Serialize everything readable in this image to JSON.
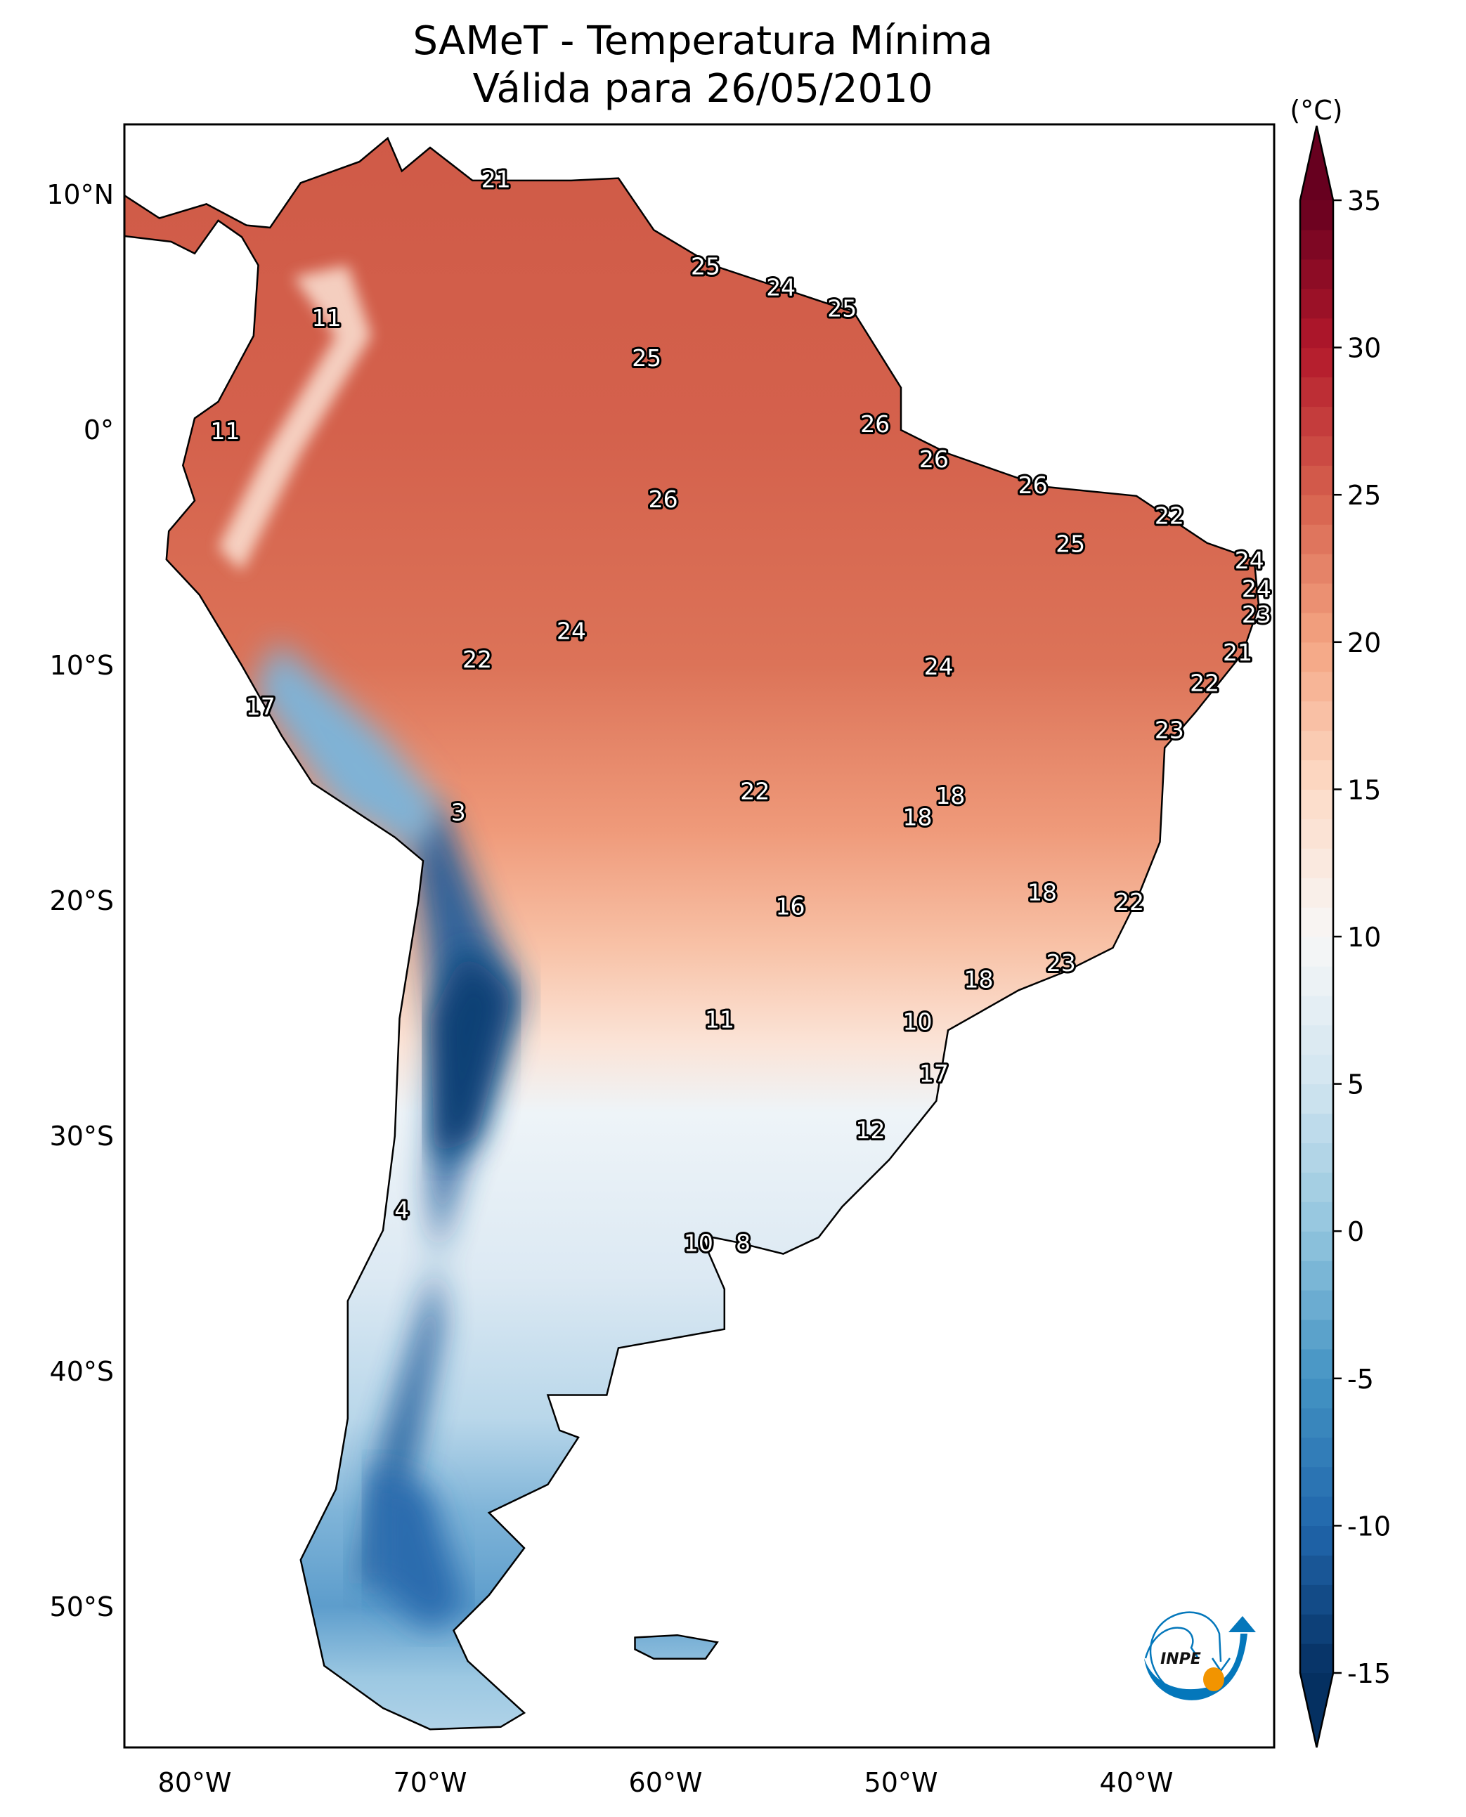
{
  "title": {
    "line1": "SAMeT - Temperatura Mínima",
    "line2": "Válida para 26/05/2010"
  },
  "colorbar": {
    "unit": "(°C)",
    "ticks": [
      "35",
      "30",
      "25",
      "20",
      "15",
      "10",
      "5",
      "0",
      "-5",
      "-10",
      "-15"
    ],
    "range": [
      -15,
      35
    ],
    "extend": "both",
    "colormap": "RdBu_r",
    "colors": [
      "#053061",
      "#2166ac",
      "#4393c3",
      "#92c5de",
      "#d1e5f0",
      "#f7f7f7",
      "#fddbc7",
      "#f4a582",
      "#d6604d",
      "#b2182b",
      "#67001f"
    ]
  },
  "axes": {
    "lat_labels": [
      "10°N",
      "0°",
      "10°S",
      "20°S",
      "30°S",
      "40°S",
      "50°S"
    ],
    "lon_labels": [
      "80°W",
      "70°W",
      "60°W",
      "50°W",
      "40°W"
    ]
  },
  "logo": {
    "text": "INPE",
    "colors": {
      "blue": "#0477bb",
      "orange": "#f29400"
    }
  },
  "chart_data": {
    "type": "map",
    "variable": "Temperatura Mínima",
    "extent": {
      "lon": [
        -83,
        -34
      ],
      "lat": [
        -56,
        13
      ]
    },
    "stations": [
      {
        "value": "21",
        "lon": -67.2,
        "lat": 10.6
      },
      {
        "value": "25",
        "lon": -58.3,
        "lat": 6.9
      },
      {
        "value": "24",
        "lon": -55.1,
        "lat": 6.0
      },
      {
        "value": "25",
        "lon": -52.5,
        "lat": 5.1
      },
      {
        "value": "11",
        "lon": -74.4,
        "lat": 4.7
      },
      {
        "value": "25",
        "lon": -60.8,
        "lat": 3.0
      },
      {
        "value": "11",
        "lon": -78.7,
        "lat": -0.1
      },
      {
        "value": "26",
        "lon": -51.1,
        "lat": 0.2
      },
      {
        "value": "26",
        "lon": -48.6,
        "lat": -1.3
      },
      {
        "value": "26",
        "lon": -60.1,
        "lat": -3.0
      },
      {
        "value": "26",
        "lon": -44.4,
        "lat": -2.4
      },
      {
        "value": "22",
        "lon": -38.6,
        "lat": -3.7
      },
      {
        "value": "25",
        "lon": -42.8,
        "lat": -4.9
      },
      {
        "value": "24",
        "lon": -35.2,
        "lat": -5.6
      },
      {
        "value": "24",
        "lon": -34.9,
        "lat": -6.8
      },
      {
        "value": "23",
        "lon": -34.9,
        "lat": -7.9
      },
      {
        "value": "24",
        "lon": -64.0,
        "lat": -8.6
      },
      {
        "value": "21",
        "lon": -35.7,
        "lat": -9.5
      },
      {
        "value": "22",
        "lon": -68.0,
        "lat": -9.8
      },
      {
        "value": "24",
        "lon": -48.4,
        "lat": -10.1
      },
      {
        "value": "22",
        "lon": -37.1,
        "lat": -10.8
      },
      {
        "value": "17",
        "lon": -77.2,
        "lat": -11.8
      },
      {
        "value": "23",
        "lon": -38.6,
        "lat": -12.8
      },
      {
        "value": "22",
        "lon": -56.2,
        "lat": -15.4
      },
      {
        "value": "18",
        "lon": -47.9,
        "lat": -15.6
      },
      {
        "value": "3",
        "lon": -68.8,
        "lat": -16.3
      },
      {
        "value": "18",
        "lon": -49.3,
        "lat": -16.5
      },
      {
        "value": "18",
        "lon": -44.0,
        "lat": -19.7
      },
      {
        "value": "16",
        "lon": -54.7,
        "lat": -20.3
      },
      {
        "value": "22",
        "lon": -40.3,
        "lat": -20.1
      },
      {
        "value": "23",
        "lon": -43.2,
        "lat": -22.7
      },
      {
        "value": "18",
        "lon": -46.7,
        "lat": -23.4
      },
      {
        "value": "11",
        "lon": -57.7,
        "lat": -25.1
      },
      {
        "value": "10",
        "lon": -49.3,
        "lat": -25.2
      },
      {
        "value": "17",
        "lon": -48.6,
        "lat": -27.4
      },
      {
        "value": "12",
        "lon": -51.3,
        "lat": -29.8
      },
      {
        "value": "4",
        "lon": -71.2,
        "lat": -33.2
      },
      {
        "value": "10",
        "lon": -58.6,
        "lat": -34.6
      },
      {
        "value": "8",
        "lon": -56.7,
        "lat": -34.6
      }
    ]
  }
}
